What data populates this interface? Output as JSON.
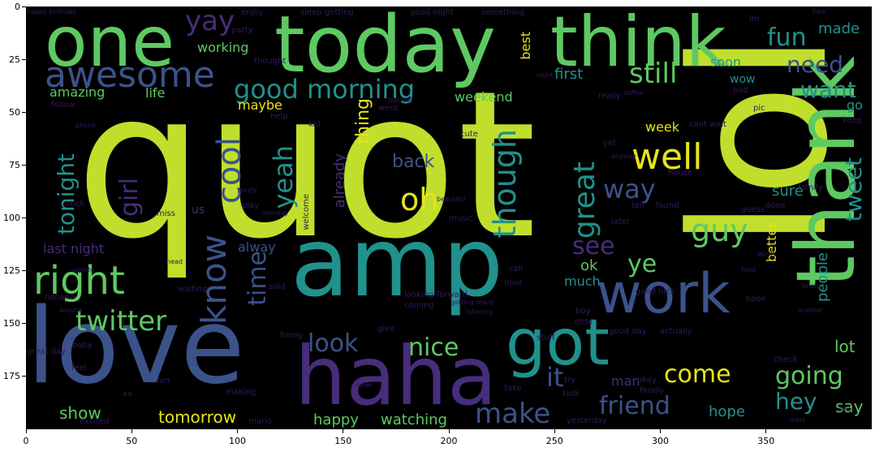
{
  "figure": {
    "x_ticks": [
      "0",
      "50",
      "100",
      "150",
      "200",
      "250",
      "300",
      "350"
    ],
    "y_ticks": [
      "0",
      "25",
      "50",
      "75",
      "100",
      "125",
      "150",
      "175"
    ],
    "x_tick_values": [
      0,
      50,
      100,
      150,
      200,
      250,
      300,
      350
    ],
    "y_tick_values": [
      0,
      25,
      50,
      75,
      100,
      125,
      150,
      175
    ],
    "x_range": [
      0,
      400
    ],
    "y_range": [
      0,
      200
    ]
  },
  "colors": {
    "lime": "#c0df2c",
    "green": "#5ec962",
    "teal": "#21918c",
    "blue": "#3b528b",
    "purple": "#472d7b",
    "yellow": "#e6e419",
    "dark": "#35175e"
  },
  "words": [
    {
      "text": "quot",
      "color": "lime"
    },
    {
      "text": "lol",
      "color": "lime"
    },
    {
      "text": "amp",
      "color": "teal"
    },
    {
      "text": "love",
      "color": "blue"
    },
    {
      "text": "haha",
      "color": "purple"
    },
    {
      "text": "today",
      "color": "green"
    },
    {
      "text": "one",
      "color": "green"
    },
    {
      "text": "think",
      "color": "green"
    },
    {
      "text": "thank",
      "color": "green"
    },
    {
      "text": "work",
      "color": "blue"
    },
    {
      "text": "got",
      "color": "teal"
    },
    {
      "text": "awesome",
      "color": "blue"
    },
    {
      "text": "right",
      "color": "green"
    },
    {
      "text": "well",
      "color": "yellow"
    },
    {
      "text": "twitter",
      "color": "green"
    },
    {
      "text": "good morning",
      "color": "teal"
    },
    {
      "text": "still",
      "color": "green"
    },
    {
      "text": "know",
      "color": "blue"
    },
    {
      "text": "cool",
      "color": "blue"
    },
    {
      "text": "yeah",
      "color": "teal"
    },
    {
      "text": "girl",
      "color": "purple"
    },
    {
      "text": "tonight",
      "color": "teal"
    },
    {
      "text": "oh",
      "color": "yellow"
    },
    {
      "text": "though",
      "color": "teal"
    },
    {
      "text": "great",
      "color": "teal"
    },
    {
      "text": "way",
      "color": "blue"
    },
    {
      "text": "guy",
      "color": "green"
    },
    {
      "text": "see",
      "color": "purple"
    },
    {
      "text": "ye",
      "color": "green"
    },
    {
      "text": "fun",
      "color": "teal"
    },
    {
      "text": "need",
      "color": "blue"
    },
    {
      "text": "want",
      "color": "teal"
    },
    {
      "text": "yay",
      "color": "purple"
    },
    {
      "text": "tweet",
      "color": "teal"
    },
    {
      "text": "look",
      "color": "blue"
    },
    {
      "text": "nice",
      "color": "green"
    },
    {
      "text": "come",
      "color": "yellow"
    },
    {
      "text": "going",
      "color": "green"
    },
    {
      "text": "friend",
      "color": "blue"
    },
    {
      "text": "make",
      "color": "blue"
    },
    {
      "text": "hey",
      "color": "teal"
    },
    {
      "text": "time",
      "color": "blue"
    },
    {
      "text": "back",
      "color": "blue"
    },
    {
      "text": "thing",
      "color": "yellow"
    },
    {
      "text": "already",
      "color": "purple"
    },
    {
      "text": "show",
      "color": "green"
    },
    {
      "text": "tomorrow",
      "color": "yellow"
    },
    {
      "text": "happy",
      "color": "green"
    },
    {
      "text": "watching",
      "color": "green"
    },
    {
      "text": "hope",
      "color": "teal"
    },
    {
      "text": "say",
      "color": "green"
    },
    {
      "text": "lot",
      "color": "green"
    },
    {
      "text": "people",
      "color": "teal"
    },
    {
      "text": "better",
      "color": "yellow"
    },
    {
      "text": "sure",
      "color": "teal"
    },
    {
      "text": "working",
      "color": "green"
    },
    {
      "text": "made",
      "color": "teal"
    },
    {
      "text": "best",
      "color": "yellow"
    },
    {
      "text": "first",
      "color": "teal"
    },
    {
      "text": "weekend",
      "color": "green"
    },
    {
      "text": "amazing",
      "color": "green"
    },
    {
      "text": "life",
      "color": "green"
    },
    {
      "text": "maybe",
      "color": "yellow"
    },
    {
      "text": "last night",
      "color": "purple"
    },
    {
      "text": "ok",
      "color": "green"
    },
    {
      "text": "much",
      "color": "teal"
    },
    {
      "text": "week",
      "color": "yellow"
    },
    {
      "text": "soon",
      "color": "teal"
    },
    {
      "text": "wow",
      "color": "teal"
    },
    {
      "text": "go",
      "color": "teal"
    },
    {
      "text": "alway",
      "color": "blue"
    },
    {
      "text": "it",
      "color": "blue"
    },
    {
      "text": "us",
      "color": "purple"
    },
    {
      "text": "man",
      "color": "purple"
    },
    {
      "text": "good night",
      "color": "dark"
    },
    {
      "text": "sleep getting",
      "color": "dark"
    },
    {
      "text": "enjoy",
      "color": "dark"
    },
    {
      "text": "party",
      "color": "dark"
    },
    {
      "text": "something",
      "color": "dark"
    },
    {
      "text": "thought",
      "color": "dark"
    },
    {
      "text": "follow",
      "color": "dark"
    },
    {
      "text": "help",
      "color": "dark"
    },
    {
      "text": "music",
      "color": "dark"
    },
    {
      "text": "cute",
      "color": "dark"
    },
    {
      "text": "cant wait",
      "color": "dark"
    },
    {
      "text": "tell",
      "color": "dark"
    },
    {
      "text": "found",
      "color": "dark"
    },
    {
      "text": "house",
      "color": "dark"
    },
    {
      "text": "done",
      "color": "dark"
    },
    {
      "text": "family",
      "color": "dark"
    },
    {
      "text": "miss",
      "color": "dark"
    },
    {
      "text": "rock",
      "color": "dark"
    },
    {
      "text": "play",
      "color": "dark"
    },
    {
      "text": "monday",
      "color": "dark"
    },
    {
      "text": "later",
      "color": "dark"
    },
    {
      "text": "guess",
      "color": "dark"
    },
    {
      "text": "wish",
      "color": "dark"
    },
    {
      "text": "said",
      "color": "dark"
    },
    {
      "text": "hour",
      "color": "dark"
    },
    {
      "text": "call",
      "color": "dark"
    },
    {
      "text": "good luck",
      "color": "dark"
    },
    {
      "text": "looking forward",
      "color": "dark"
    },
    {
      "text": "nanana",
      "color": "dark"
    },
    {
      "text": "waiting",
      "color": "dark"
    },
    {
      "text": "coming",
      "color": "dark"
    },
    {
      "text": "getting ready",
      "color": "dark"
    },
    {
      "text": "listening",
      "color": "dark"
    },
    {
      "text": "boy",
      "color": "dark"
    },
    {
      "text": "little",
      "color": "dark"
    },
    {
      "text": "stuff",
      "color": "dark"
    },
    {
      "text": "good day",
      "color": "dark"
    },
    {
      "text": "actually",
      "color": "dark"
    },
    {
      "text": "book",
      "color": "dark"
    },
    {
      "text": "check",
      "color": "dark"
    },
    {
      "text": "another",
      "color": "dark"
    },
    {
      "text": "funny",
      "color": "dark"
    },
    {
      "text": "give",
      "color": "dark"
    },
    {
      "text": "baby",
      "color": "dark"
    },
    {
      "text": "feel",
      "color": "dark"
    },
    {
      "text": "fan",
      "color": "dark"
    },
    {
      "text": "xx",
      "color": "dark"
    },
    {
      "text": "making",
      "color": "dark"
    },
    {
      "text": "excited",
      "color": "dark"
    },
    {
      "text": "mario",
      "color": "dark"
    },
    {
      "text": "take",
      "color": "dark"
    },
    {
      "text": "task",
      "color": "dark"
    },
    {
      "text": "try",
      "color": "dark"
    },
    {
      "text": "finally",
      "color": "dark"
    },
    {
      "text": "yesterday",
      "color": "dark"
    },
    {
      "text": "okay",
      "color": "dark"
    },
    {
      "text": "great day",
      "color": "dark"
    },
    {
      "text": "happy birthday",
      "color": "dark"
    },
    {
      "text": "sound",
      "color": "dark"
    },
    {
      "text": "went",
      "color": "dark"
    },
    {
      "text": "really",
      "color": "dark"
    },
    {
      "text": "pic",
      "color": "dark"
    },
    {
      "text": "coffee",
      "color": "dark"
    },
    {
      "text": "yet",
      "color": "dark"
    },
    {
      "text": "anyway",
      "color": "dark"
    },
    {
      "text": "beautiful",
      "color": "dark"
    },
    {
      "text": "welcome",
      "color": "dark"
    },
    {
      "text": "kid",
      "color": "dark"
    },
    {
      "text": "phone",
      "color": "dark"
    },
    {
      "text": "night",
      "color": "dark"
    },
    {
      "text": "bad",
      "color": "dark"
    },
    {
      "text": "im",
      "color": "dark"
    },
    {
      "text": "keep",
      "color": "dark"
    },
    {
      "text": "free",
      "color": "dark"
    },
    {
      "text": "head",
      "color": "dark"
    },
    {
      "text": "update",
      "color": "dark"
    },
    {
      "text": "around",
      "color": "dark"
    },
    {
      "text": "hello",
      "color": "dark"
    },
    {
      "text": "dinner",
      "color": "dark"
    },
    {
      "text": "lovely",
      "color": "dark"
    },
    {
      "text": "food",
      "color": "dark"
    },
    {
      "text": "photo",
      "color": "dark"
    },
    {
      "text": "least",
      "color": "dark"
    }
  ]
}
